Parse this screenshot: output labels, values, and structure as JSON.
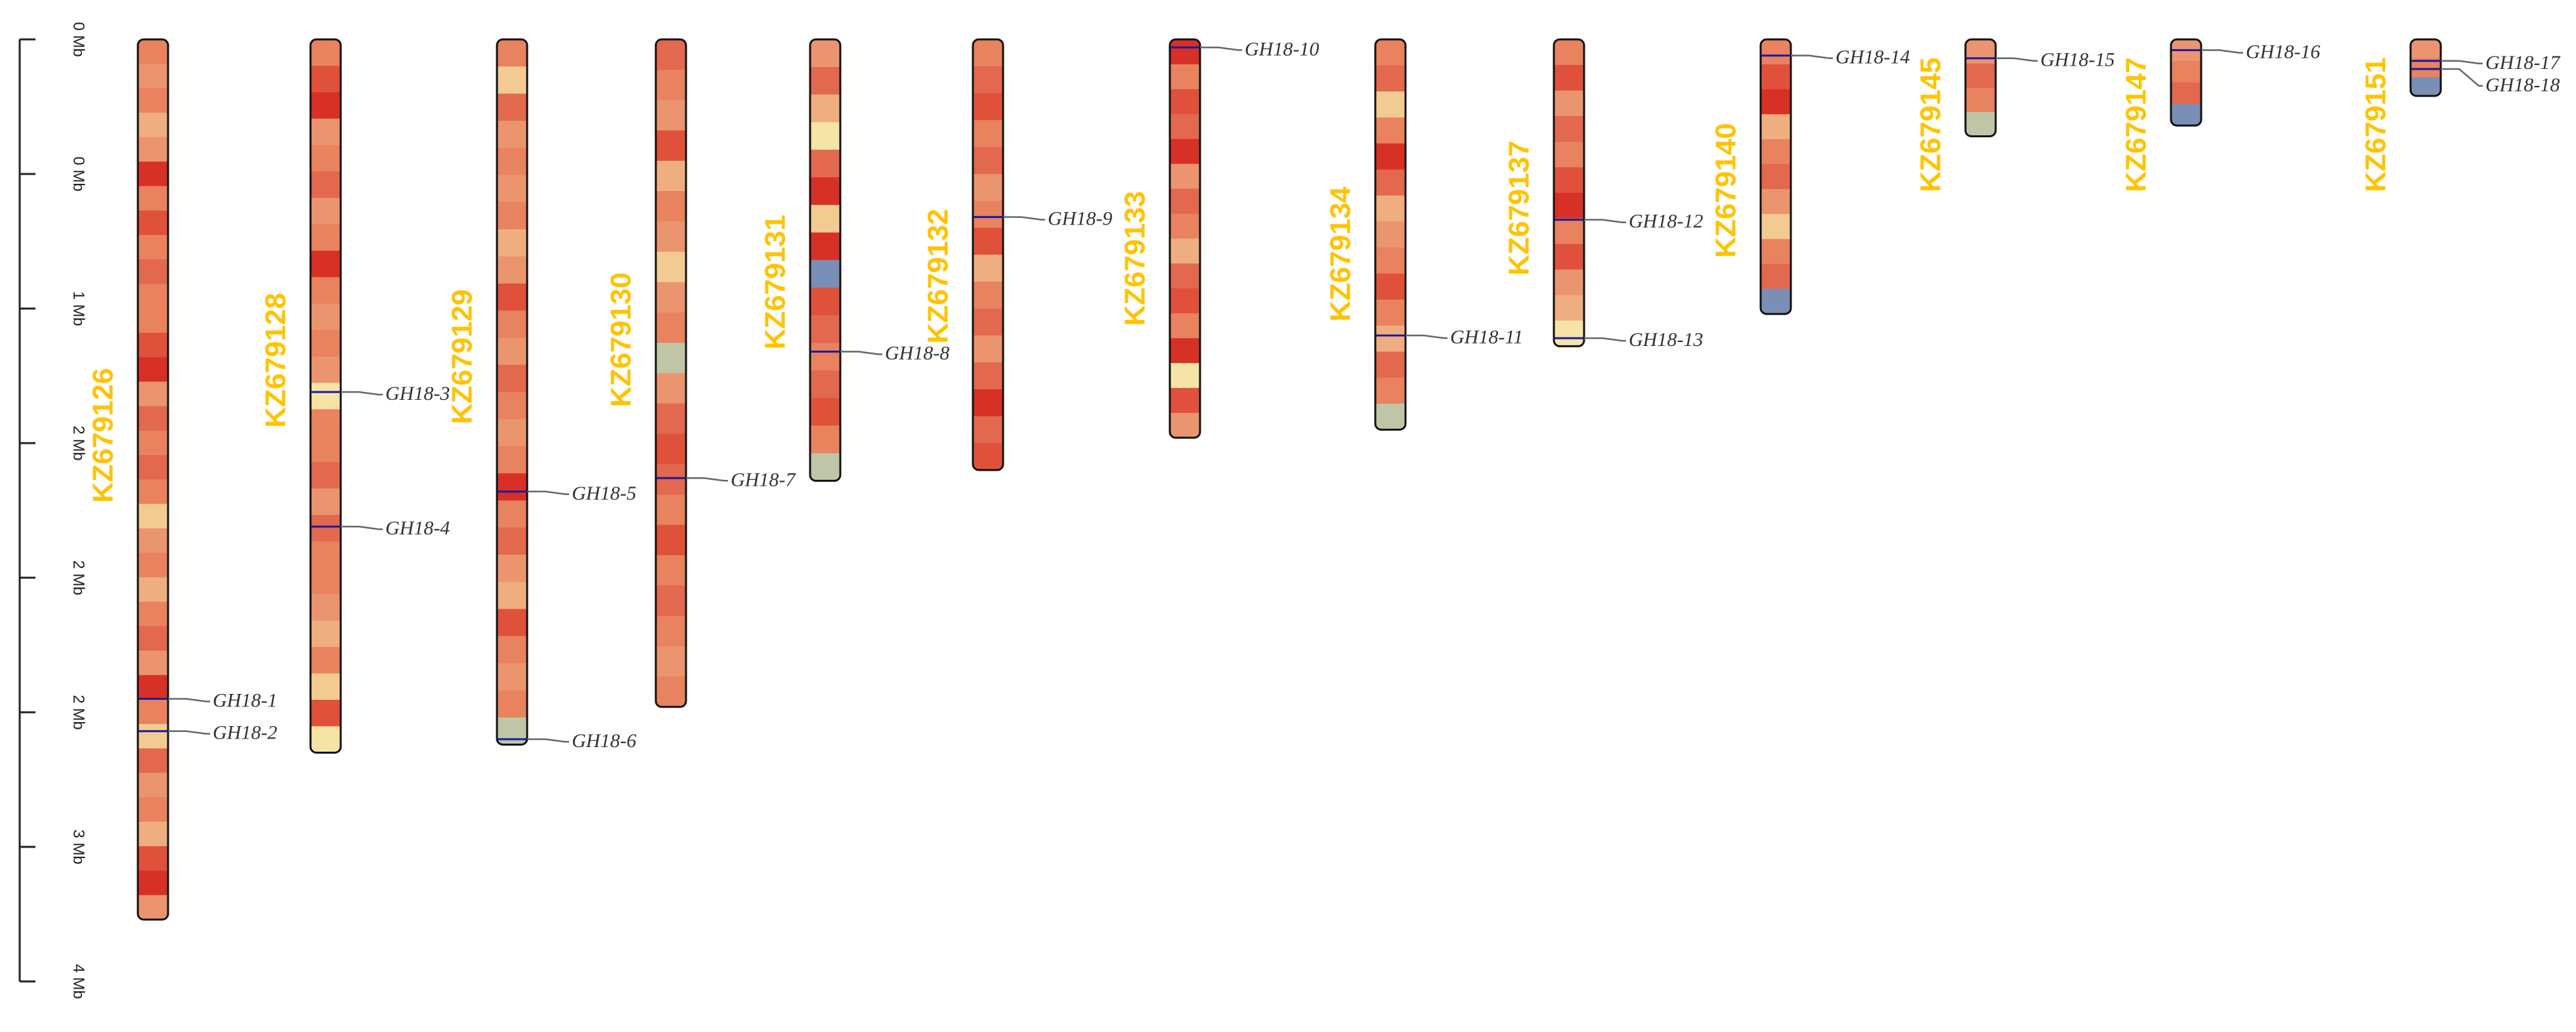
{
  "ruler": {
    "ticks": [
      {
        "label": "0 Mb",
        "v": 0
      },
      {
        "label": "0 Mb",
        "v": 0.5
      },
      {
        "label": "1 Mb",
        "v": 1
      },
      {
        "label": "2 Mb",
        "v": 1.5
      },
      {
        "label": "2 Mb",
        "v": 2
      },
      {
        "label": "2 Mb",
        "v": 2.5
      },
      {
        "label": "3 Mb",
        "v": 3
      },
      {
        "label": "4 Mb",
        "v": 3.5
      }
    ]
  },
  "colors": {
    "label": "#FFC300",
    "gene_line": "#1a1aa6",
    "leader": "#666666",
    "outline": "#111111",
    "density_palette": [
      "#D73027",
      "#E0513B",
      "#E2684F",
      "#E8825F",
      "#EB9470",
      "#EEAE80",
      "#F2CB92",
      "#F6E3A6",
      "#BFC6A8",
      "#7A8FB5"
    ]
  },
  "chromosomes": [
    {
      "name": "KZ679126",
      "length": 3.27,
      "density": [
        3,
        4,
        3,
        5,
        4,
        0,
        3,
        1,
        3,
        2,
        3,
        3,
        1,
        0,
        4,
        2,
        3,
        2,
        3,
        6,
        4,
        3,
        5,
        3,
        2,
        4,
        0,
        3,
        6,
        2,
        4,
        3,
        5,
        1,
        0,
        4
      ],
      "genes": [
        {
          "label": "GH18-1",
          "pos": 2.45
        },
        {
          "label": "GH18-2",
          "pos": 2.57
        }
      ]
    },
    {
      "name": "KZ679128",
      "length": 2.65,
      "density": [
        3,
        1,
        0,
        4,
        3,
        2,
        4,
        3,
        0,
        3,
        4,
        3,
        4,
        7,
        3,
        3,
        2,
        4,
        2,
        3,
        3,
        4,
        5,
        3,
        6,
        1,
        7
      ],
      "genes": [
        {
          "label": "GH18-3",
          "pos": 1.31
        },
        {
          "label": "GH18-4",
          "pos": 1.81
        }
      ]
    },
    {
      "name": "KZ679129",
      "length": 2.62,
      "density": [
        3,
        6,
        2,
        4,
        3,
        4,
        3,
        5,
        4,
        1,
        3,
        4,
        2,
        3,
        4,
        3,
        0,
        3,
        2,
        4,
        5,
        1,
        3,
        4,
        3,
        8
      ],
      "genes": [
        {
          "label": "GH18-5",
          "pos": 1.68
        },
        {
          "label": "GH18-6",
          "pos": 2.6
        }
      ]
    },
    {
      "name": "KZ679130",
      "length": 2.48,
      "density": [
        2,
        3,
        4,
        1,
        5,
        3,
        4,
        6,
        4,
        3,
        8,
        4,
        2,
        1,
        2,
        3,
        1,
        3,
        2,
        3,
        4,
        3
      ],
      "genes": [
        {
          "label": "GH18-7",
          "pos": 1.63
        }
      ]
    },
    {
      "name": "KZ679131",
      "length": 1.64,
      "density": [
        4,
        2,
        5,
        7,
        2,
        0,
        6,
        0,
        9,
        1,
        2,
        3,
        2,
        1,
        3,
        8
      ],
      "genes": [
        {
          "label": "GH18-8",
          "pos": 1.16
        }
      ]
    },
    {
      "name": "KZ679132",
      "length": 1.6,
      "density": [
        3,
        2,
        1,
        3,
        2,
        4,
        3,
        1,
        5,
        3,
        2,
        4,
        2,
        0,
        2,
        1
      ],
      "genes": [
        {
          "label": "GH18-9",
          "pos": 0.66
        }
      ]
    },
    {
      "name": "KZ679133",
      "length": 1.48,
      "density": [
        0,
        3,
        1,
        2,
        0,
        4,
        2,
        3,
        5,
        2,
        1,
        3,
        0,
        7,
        1,
        4
      ],
      "genes": [
        {
          "label": "GH18-10",
          "pos": 0.03
        }
      ]
    },
    {
      "name": "KZ679134",
      "length": 1.45,
      "density": [
        3,
        2,
        6,
        3,
        0,
        2,
        5,
        4,
        3,
        1,
        3,
        5,
        2,
        3,
        8
      ],
      "genes": [
        {
          "label": "GH18-11",
          "pos": 1.1
        }
      ]
    },
    {
      "name": "KZ679137",
      "length": 1.14,
      "density": [
        3,
        1,
        4,
        2,
        3,
        1,
        0,
        3,
        1,
        4,
        5,
        7
      ],
      "genes": [
        {
          "label": "GH18-12",
          "pos": 0.67
        },
        {
          "label": "GH18-13",
          "pos": 1.11
        }
      ]
    },
    {
      "name": "KZ679140",
      "length": 1.02,
      "density": [
        3,
        1,
        0,
        5,
        3,
        2,
        4,
        6,
        3,
        2,
        9
      ],
      "genes": [
        {
          "label": "GH18-14",
          "pos": 0.06
        }
      ]
    },
    {
      "name": "KZ679145",
      "length": 0.36,
      "density": [
        4,
        2,
        3,
        8
      ],
      "genes": [
        {
          "label": "GH18-15",
          "pos": 0.07
        }
      ]
    },
    {
      "name": "KZ679147",
      "length": 0.32,
      "density": [
        4,
        3,
        2,
        9
      ],
      "genes": [
        {
          "label": "GH18-16",
          "pos": 0.04
        }
      ]
    },
    {
      "name": "KZ679151",
      "length": 0.21,
      "density": [
        4,
        3,
        9
      ],
      "genes": [
        {
          "label": "GH18-17",
          "pos": 0.08
        },
        {
          "label": "GH18-18",
          "pos": 0.11
        }
      ]
    }
  ]
}
